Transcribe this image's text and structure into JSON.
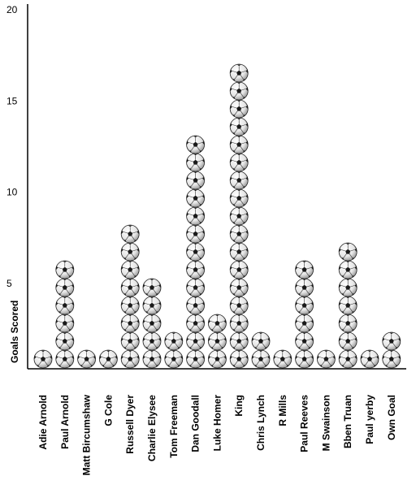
{
  "chart_data": {
    "type": "bar",
    "title": "",
    "xlabel": "",
    "ylabel": "Goals Scored",
    "ylim": [
      0,
      20
    ],
    "yticks": [
      "20",
      "15",
      "10",
      "5"
    ],
    "grid": false,
    "marker": "soccer-ball-icon",
    "categories": [
      "Adie Arnold",
      "Paul Arnold",
      "Matt Bircumshaw",
      "G Cole",
      "Russell Dyer",
      "Charlie Elysee",
      "Tom Freeman",
      "Dan Goodall",
      "Luke Homer",
      "King",
      "Chris Lynch",
      "R Mills",
      "Paul Reeves",
      "M Swainson",
      "Bben Truan",
      "Paul yerby",
      "Own Goal"
    ],
    "values": [
      1,
      6,
      1,
      1,
      8,
      5,
      2,
      13,
      3,
      17,
      2,
      1,
      6,
      1,
      7,
      1,
      2
    ]
  }
}
